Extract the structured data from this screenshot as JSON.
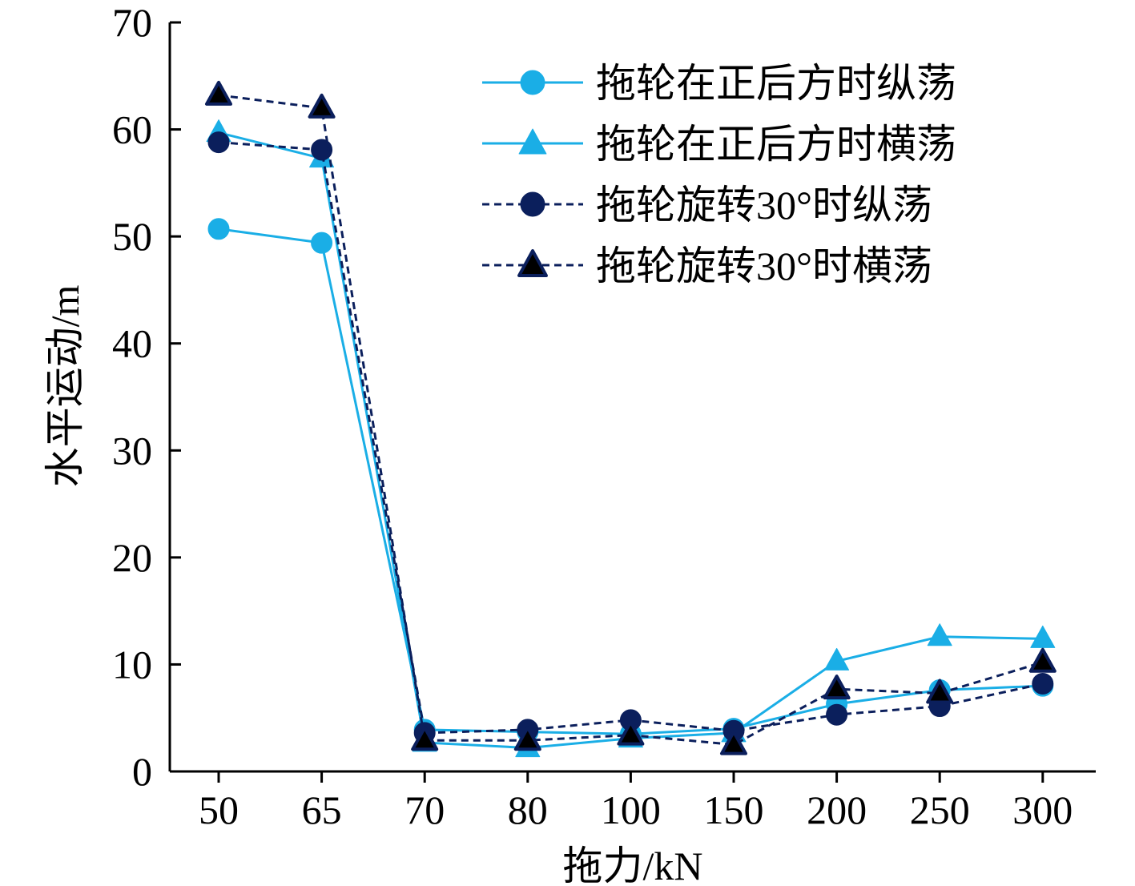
{
  "chart_data": {
    "type": "line",
    "title": "",
    "xlabel": "拖力/kN",
    "ylabel": "水平运动/m",
    "categories": [
      "50",
      "65",
      "70",
      "80",
      "100",
      "150",
      "200",
      "250",
      "300"
    ],
    "ylim": [
      0,
      70
    ],
    "yticks": [
      0,
      10,
      20,
      30,
      40,
      50,
      60,
      70
    ],
    "grid": false,
    "legend_position": "top-right",
    "series": [
      {
        "name": "拖轮在正后方时纵荡",
        "marker": "circle",
        "line": "solid",
        "color": "#1aaee6",
        "values": [
          50.7,
          49.4,
          3.9,
          3.7,
          3.5,
          4.0,
          6.3,
          7.6,
          8.0
        ]
      },
      {
        "name": "拖轮在正后方时横荡",
        "marker": "triangle",
        "line": "solid",
        "color": "#1aaee6",
        "values": [
          59.7,
          57.3,
          2.7,
          2.2,
          3.1,
          3.6,
          10.3,
          12.6,
          12.4
        ]
      },
      {
        "name": "拖轮旋转30°时纵荡",
        "marker": "circle",
        "line": "dashed",
        "color": "#0b1f5c",
        "values": [
          58.8,
          58.1,
          3.6,
          3.9,
          4.8,
          3.8,
          5.3,
          6.1,
          8.2
        ]
      },
      {
        "name": "拖轮旋转30°时横荡",
        "marker": "triangle",
        "line": "dashed",
        "color": "#0b1f5c",
        "values": [
          63.2,
          62.0,
          2.9,
          2.9,
          3.4,
          2.5,
          7.7,
          7.3,
          10.2
        ]
      }
    ]
  }
}
